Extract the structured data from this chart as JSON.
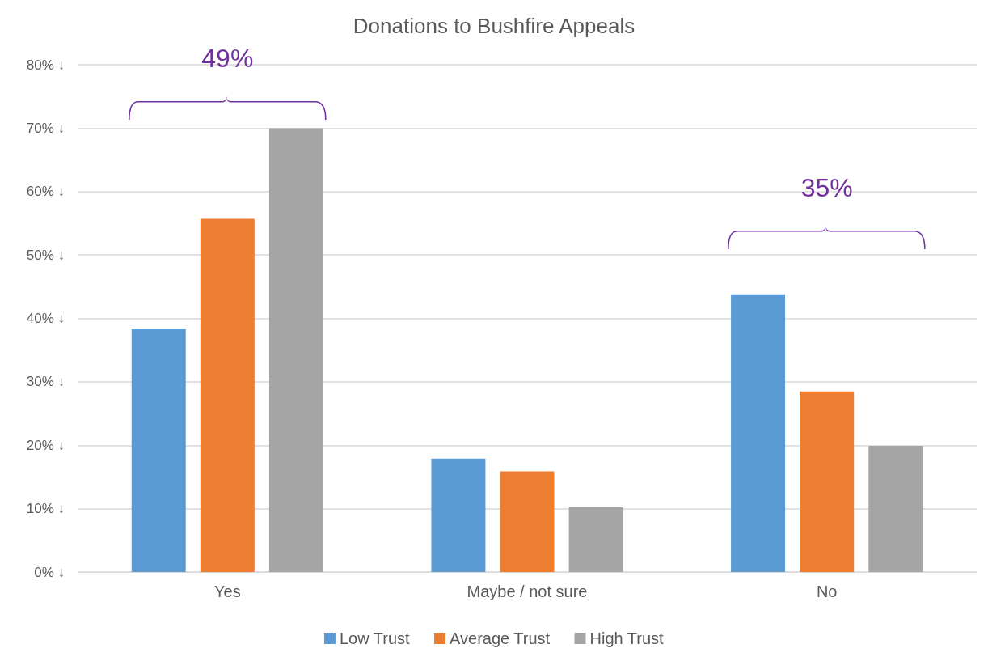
{
  "chart_data": {
    "type": "bar",
    "title": "Donations to Bushfire Appeals",
    "categories": [
      "Yes",
      "Maybe / not sure",
      "No"
    ],
    "series": [
      {
        "name": "Low Trust",
        "color": "#5b9bd5",
        "values": [
          38.4,
          17.9,
          43.8
        ]
      },
      {
        "name": "Average Trust",
        "color": "#ed7d31",
        "values": [
          55.7,
          15.9,
          28.5
        ]
      },
      {
        "name": "High Trust",
        "color": "#a5a5a5",
        "values": [
          70.0,
          10.2,
          19.9
        ]
      }
    ],
    "ylim": [
      0,
      80
    ],
    "yticks": [
      {
        "value": 0,
        "label": "0% ↓"
      },
      {
        "value": 10,
        "label": "10% ↓"
      },
      {
        "value": 20,
        "label": "20% ↓"
      },
      {
        "value": 30,
        "label": "30% ↓"
      },
      {
        "value": 40,
        "label": "40% ↓"
      },
      {
        "value": 50,
        "label": "50% ↓"
      },
      {
        "value": 60,
        "label": "60% ↓"
      },
      {
        "value": 70,
        "label": "70% ↓"
      },
      {
        "value": 80,
        "label": "80% ↓"
      }
    ],
    "annotations": [
      "49%",
      "35%"
    ],
    "grid": "y",
    "legend": "bottom"
  }
}
